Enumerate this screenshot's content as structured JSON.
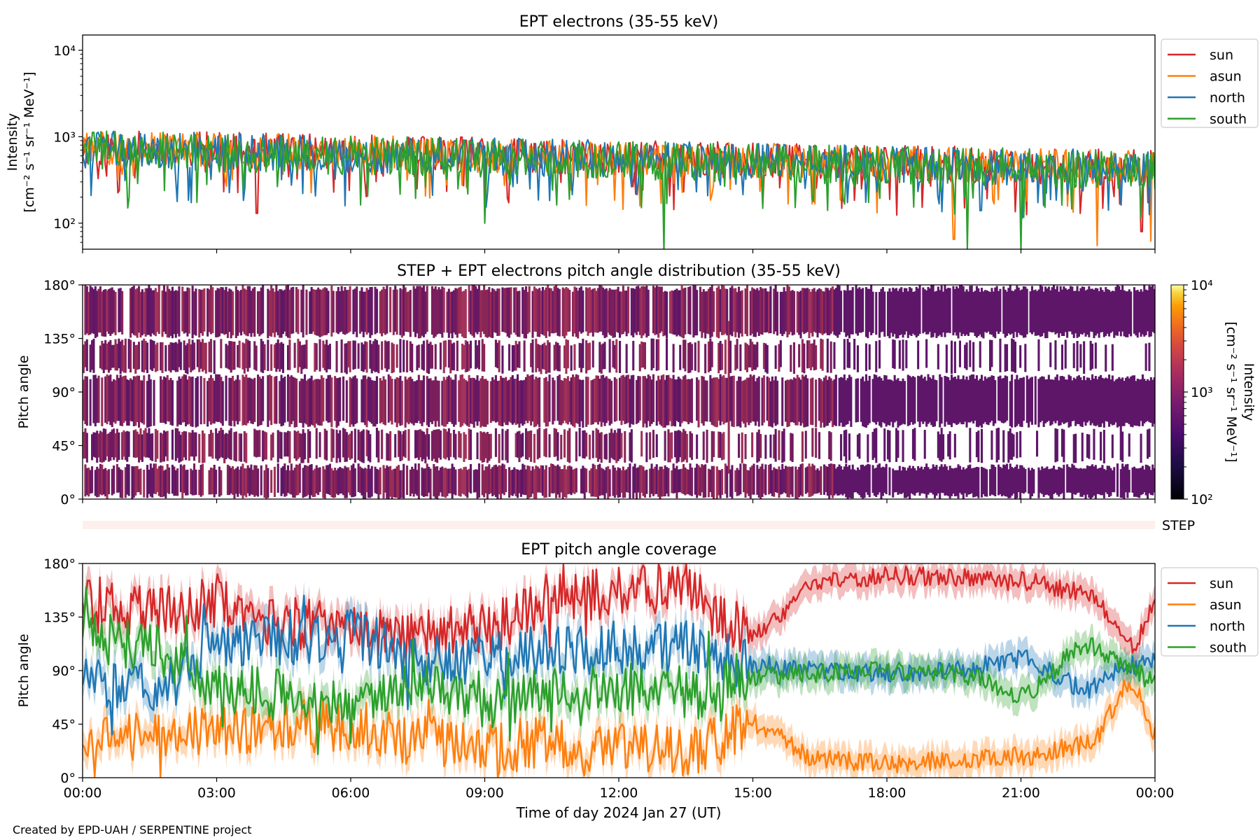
{
  "footer": "Created by EPD-UAH / SERPENTINE project",
  "colors": {
    "sun": "#d62728",
    "asun": "#ff7f0e",
    "north": "#1f77b4",
    "south": "#2ca02c",
    "step_band": "#fdf0ec"
  },
  "chart_data": [
    {
      "type": "line",
      "title": "EPT electrons (35-55 keV)",
      "ylabel_line1": "Intensity",
      "ylabel_line2": "[cm⁻² s⁻¹ sr⁻¹ MeV⁻¹]",
      "yscale": "log",
      "ylim": [
        50,
        15000
      ],
      "y_ticks": [
        {
          "value": 100,
          "label": "10²"
        },
        {
          "value": 1000,
          "label": "10³"
        },
        {
          "value": 10000,
          "label": "10⁴"
        }
      ],
      "xlim_hours": [
        0,
        24
      ],
      "legend_position": "outside-right-top",
      "series": [
        {
          "name": "sun",
          "color_key": "sun",
          "baseline_start": 750,
          "baseline_end": 430,
          "spread": 0.42,
          "dips": [
            [
              3.9,
              130
            ],
            [
              9.0,
              200
            ],
            [
              23.7,
              80
            ]
          ]
        },
        {
          "name": "asun",
          "color_key": "asun",
          "baseline_start": 760,
          "baseline_end": 430,
          "spread": 0.4,
          "dips": [
            [
              19.5,
              65
            ],
            [
              22.7,
              55
            ],
            [
              23.9,
              62
            ]
          ]
        },
        {
          "name": "north",
          "color_key": "north",
          "baseline_start": 720,
          "baseline_end": 420,
          "spread": 0.44,
          "dips": [
            [
              20.1,
              140
            ],
            [
              21.5,
              160
            ]
          ]
        },
        {
          "name": "south",
          "color_key": "south",
          "baseline_start": 700,
          "baseline_end": 410,
          "spread": 0.45,
          "dips": [
            [
              1.0,
              150
            ],
            [
              9.0,
              100
            ],
            [
              13.0,
              45
            ],
            [
              19.8,
              50
            ],
            [
              21.0,
              45
            ]
          ]
        }
      ]
    },
    {
      "type": "heatmap",
      "title": "STEP + EPT electrons pitch angle distribution (35-55 keV)",
      "ylabel": "Pitch angle",
      "ylim": [
        0,
        180
      ],
      "y_ticks": [
        "0°",
        "45°",
        "90°",
        "135°",
        "180°"
      ],
      "y_tick_values": [
        0,
        45,
        90,
        135,
        180
      ],
      "colorbar": {
        "label_line1": "Intensity",
        "label_line2": "[cm⁻² s⁻¹ sr⁻¹ MeV⁻¹]",
        "scale": "log",
        "range": [
          100,
          10000
        ],
        "ticks": [
          {
            "value": 100,
            "label": "10²"
          },
          {
            "value": 1000,
            "label": "10³"
          },
          {
            "value": 10000,
            "label": "10⁴"
          }
        ],
        "colormap": "inferno"
      },
      "step_label": "STEP"
    },
    {
      "type": "line",
      "title": "EPT pitch angle coverage",
      "ylabel": "Pitch angle",
      "xlabel": "Time of day 2024 Jan 27 (UT)",
      "ylim": [
        0,
        180
      ],
      "y_ticks": [
        "0°",
        "45°",
        "90°",
        "135°",
        "180°"
      ],
      "y_tick_values": [
        0,
        45,
        90,
        135,
        180
      ],
      "x_ticks": [
        "00:00",
        "03:00",
        "06:00",
        "09:00",
        "12:00",
        "15:00",
        "18:00",
        "21:00",
        "00:00"
      ],
      "x_tick_hours": [
        0,
        3,
        6,
        9,
        12,
        15,
        18,
        21,
        24
      ],
      "legend_position": "outside-right-top",
      "series": [
        {
          "name": "sun",
          "color_key": "sun",
          "hours": [
            0,
            1.5,
            3,
            4.5,
            6,
            7.5,
            9,
            10.5,
            12,
            13.5,
            15,
            16.5,
            18,
            19.5,
            21,
            22.5,
            23.5,
            24
          ],
          "pitch": [
            150,
            140,
            145,
            130,
            125,
            120,
            125,
            150,
            155,
            160,
            120,
            165,
            170,
            168,
            165,
            155,
            110,
            145
          ]
        },
        {
          "name": "asun",
          "color_key": "asun",
          "hours": [
            0,
            1.5,
            3,
            4.5,
            6,
            7.5,
            9,
            10.5,
            12,
            13.5,
            15,
            16.5,
            18,
            19.5,
            21,
            22.5,
            23.5,
            24
          ],
          "pitch": [
            30,
            35,
            40,
            45,
            40,
            30,
            25,
            30,
            25,
            20,
            45,
            15,
            12,
            15,
            18,
            28,
            80,
            35
          ]
        },
        {
          "name": "north",
          "color_key": "north",
          "hours": [
            0,
            1.5,
            3,
            4.5,
            6,
            7.5,
            9,
            10.5,
            12,
            13.5,
            15,
            16.5,
            18,
            19.5,
            21,
            22.5,
            23.5,
            24
          ],
          "pitch": [
            80,
            75,
            110,
            115,
            120,
            100,
            100,
            110,
            105,
            110,
            95,
            90,
            88,
            90,
            100,
            75,
            95,
            100
          ]
        },
        {
          "name": "south",
          "color_key": "south",
          "hours": [
            0,
            1.5,
            3,
            4.5,
            6,
            7.5,
            9,
            10.5,
            12,
            13.5,
            15,
            16.5,
            18,
            19.5,
            21,
            22.5,
            23.5,
            24
          ],
          "pitch": [
            120,
            110,
            75,
            70,
            65,
            75,
            60,
            70,
            75,
            70,
            85,
            88,
            90,
            88,
            70,
            110,
            90,
            80
          ]
        }
      ]
    }
  ]
}
